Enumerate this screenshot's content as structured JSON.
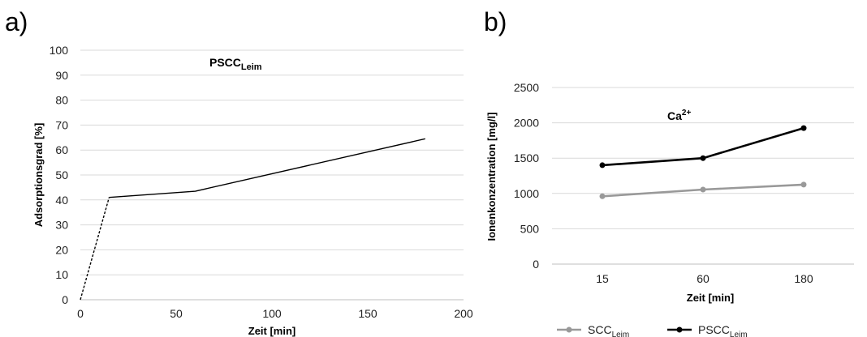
{
  "chart_data": [
    {
      "panel_label": "a)",
      "type": "line",
      "title": "PSCC",
      "title_sub": "Leim",
      "xlabel": "Zeit [min]",
      "ylabel": "Adsorptionsgrad  [%]",
      "xlim": [
        0,
        200
      ],
      "ylim": [
        0,
        100
      ],
      "xticks": [
        0,
        50,
        100,
        150,
        200
      ],
      "yticks": [
        0,
        10,
        20,
        30,
        40,
        50,
        60,
        70,
        80,
        90,
        100
      ],
      "grid": true,
      "series": [
        {
          "style": "dashed",
          "color": "#000000",
          "x": [
            0,
            15
          ],
          "y": [
            0,
            41
          ]
        },
        {
          "style": "solid",
          "color": "#000000",
          "x": [
            15,
            60,
            180
          ],
          "y": [
            41,
            43.5,
            64.5
          ]
        }
      ]
    },
    {
      "panel_label": "b)",
      "type": "line",
      "title": "Ca",
      "title_sup": "2+",
      "xlabel": "Zeit  [min]",
      "ylabel": "Ionenkonzentration  [mg/l]",
      "categories": [
        "15",
        "60",
        "180"
      ],
      "ylim": [
        0,
        2500
      ],
      "yticks": [
        0,
        500,
        1000,
        1500,
        2000,
        2500
      ],
      "grid": true,
      "legend_position": "bottom",
      "series": [
        {
          "name": "SCC",
          "name_sub": "Leim",
          "color": "#999999",
          "values": [
            960,
            1055,
            1125
          ]
        },
        {
          "name": "PSCC",
          "name_sub": "Leim",
          "color": "#000000",
          "values": [
            1400,
            1500,
            1925
          ]
        }
      ]
    }
  ]
}
